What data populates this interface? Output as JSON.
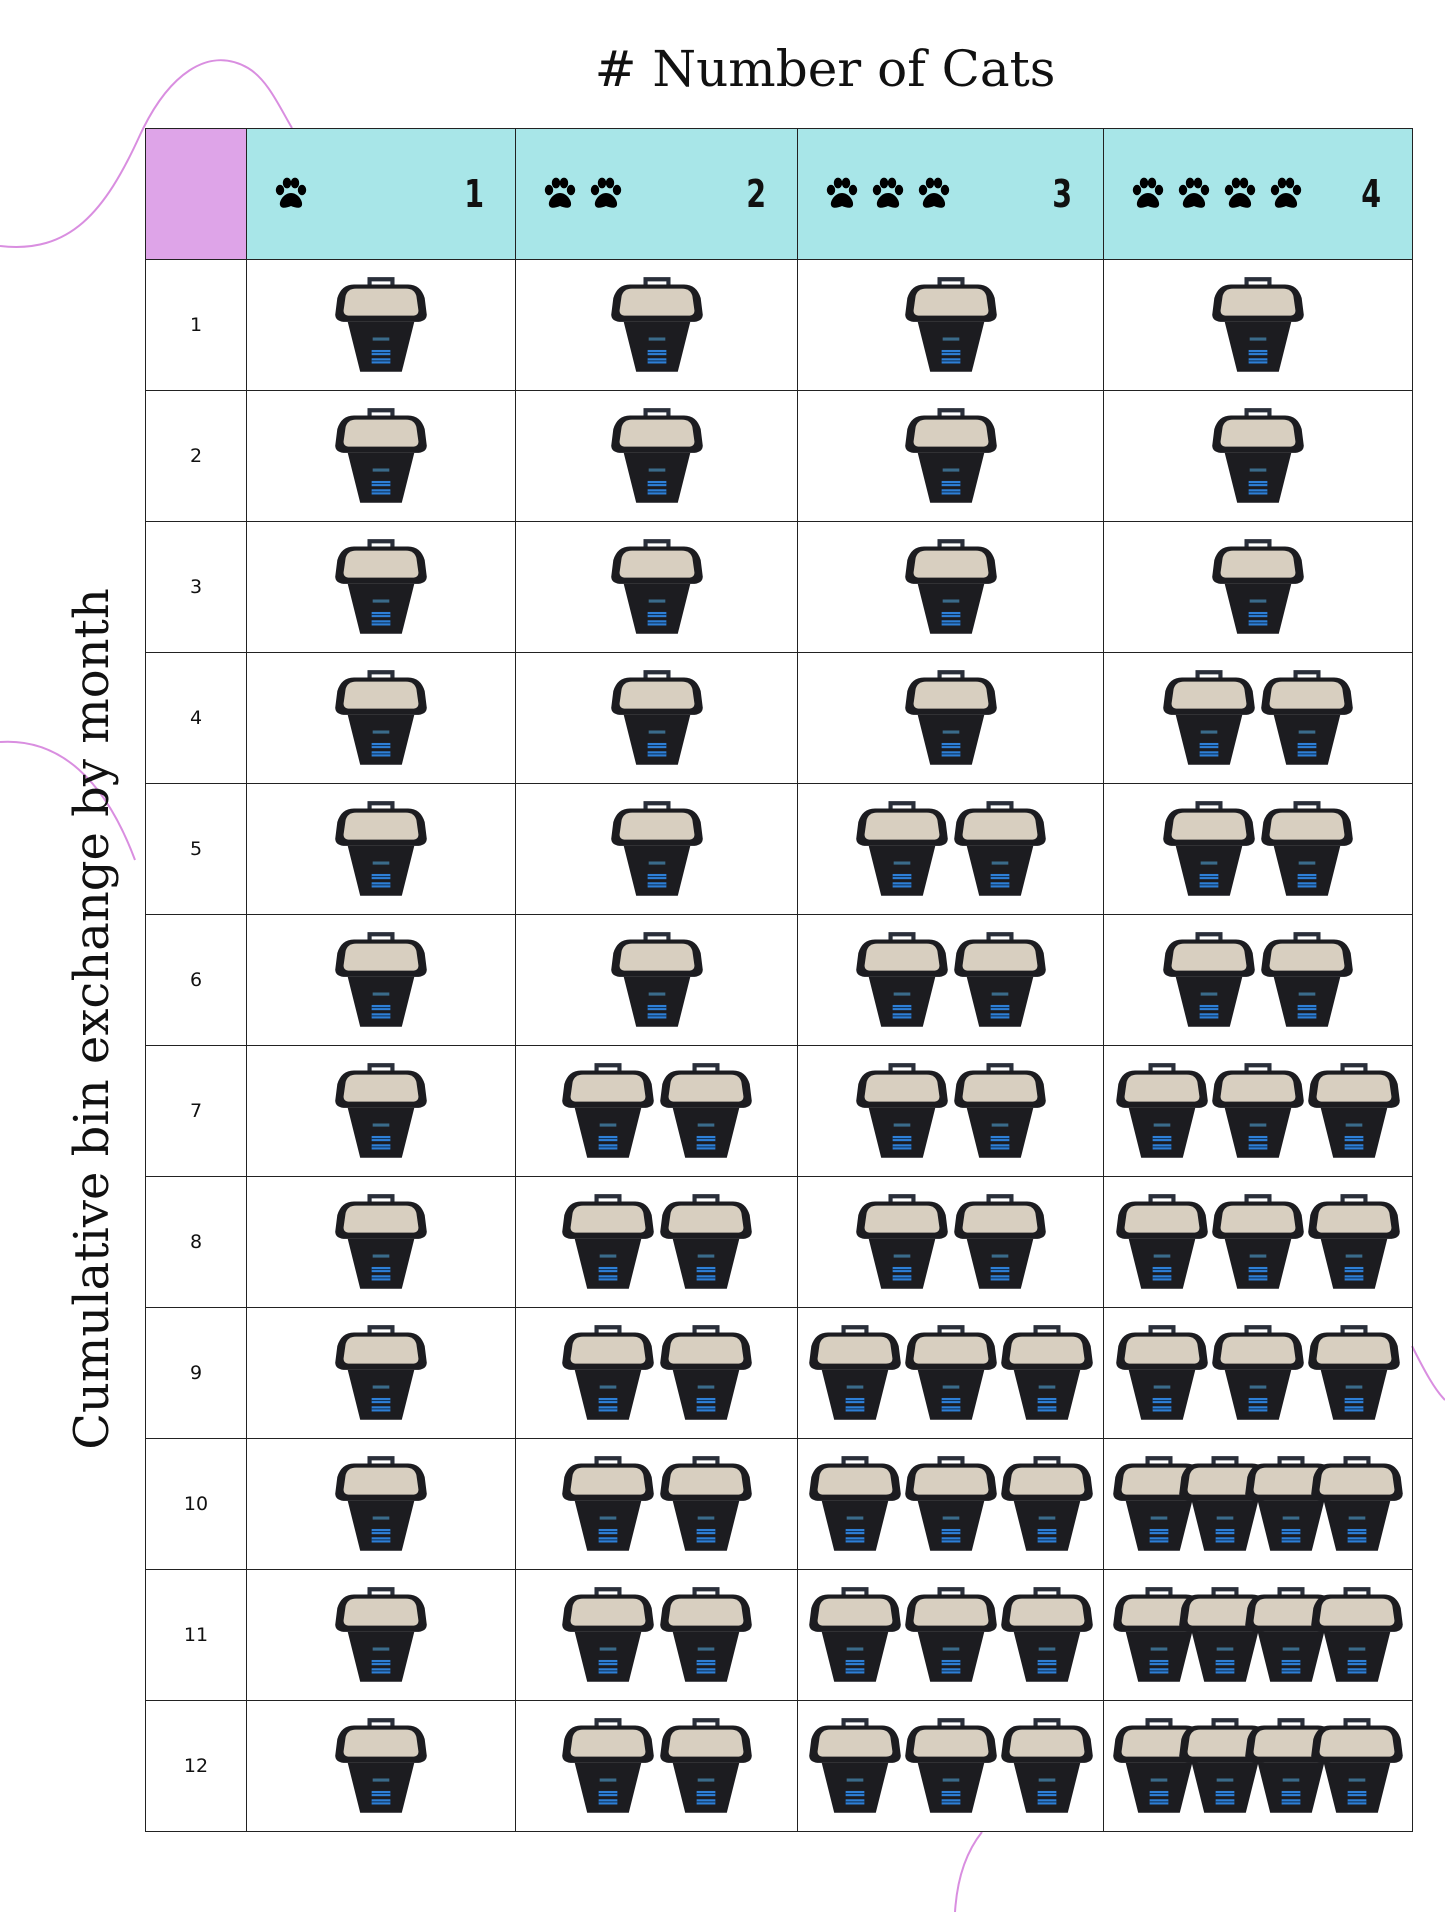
{
  "chart_data": {
    "type": "table",
    "title": "# Number of Cats",
    "ylabel": "Cumulative bin exchange by month",
    "columns": [
      1,
      2,
      3,
      4
    ],
    "months": [
      1,
      2,
      3,
      4,
      5,
      6,
      7,
      8,
      9,
      10,
      11,
      12
    ],
    "series": [
      {
        "cats": 1,
        "values": [
          1,
          1,
          1,
          1,
          1,
          1,
          1,
          1,
          1,
          1,
          1,
          1
        ]
      },
      {
        "cats": 2,
        "values": [
          1,
          1,
          1,
          1,
          1,
          1,
          2,
          2,
          2,
          2,
          2,
          2
        ]
      },
      {
        "cats": 3,
        "values": [
          1,
          1,
          1,
          1,
          2,
          2,
          2,
          2,
          3,
          3,
          3,
          3
        ]
      },
      {
        "cats": 4,
        "values": [
          1,
          1,
          1,
          2,
          2,
          2,
          3,
          3,
          3,
          4,
          4,
          4
        ]
      }
    ],
    "colors": {
      "header_bg": "#a8e6e8",
      "corner_bg": "#dea4e8",
      "decor_line": "#d98ee0",
      "bin_body": "#1c1c20",
      "bin_litter": "#d8cfc0",
      "bin_label": "#2e7fd6"
    },
    "icons": {
      "header": "paw-icon",
      "cell": "litter-bin-icon"
    }
  }
}
